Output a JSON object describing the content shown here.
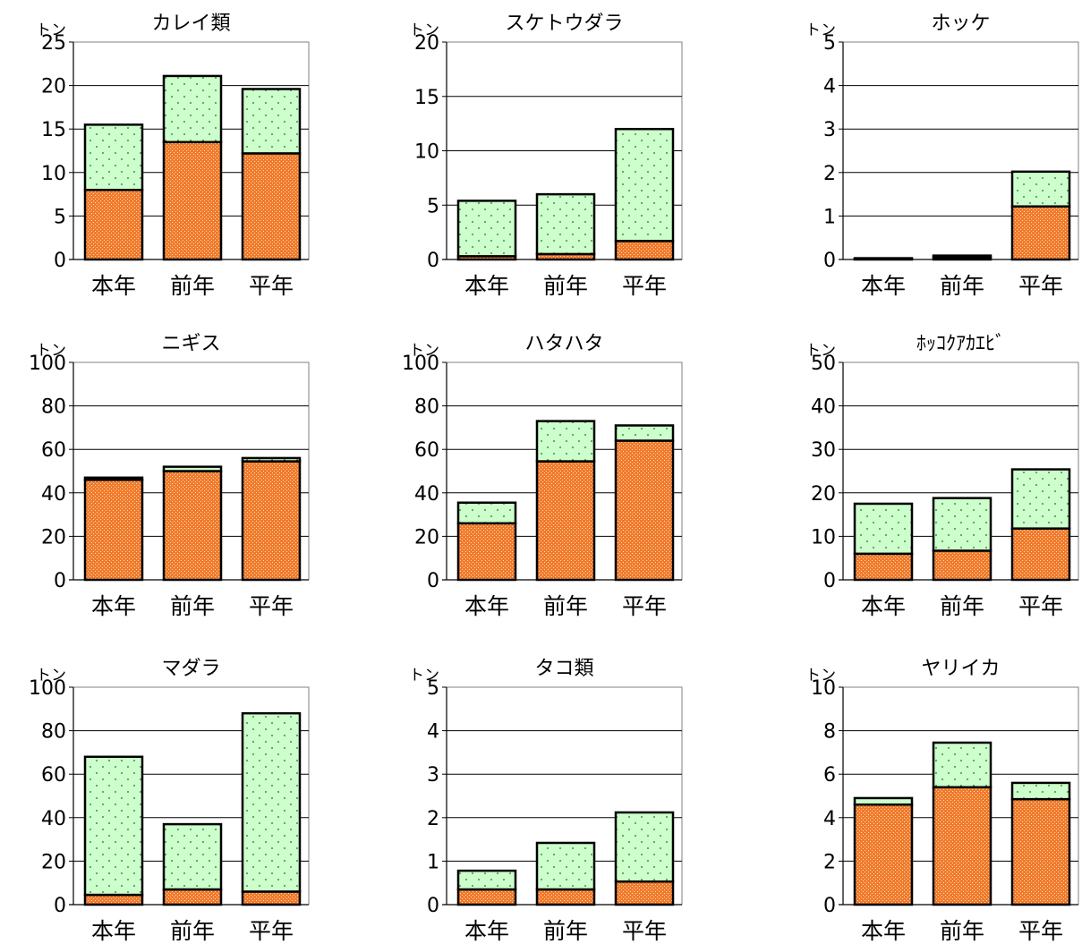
{
  "chart_data": [
    {
      "type": "bar",
      "stacked": true,
      "title": "カレイ類",
      "unit_label": "トン",
      "ylim": [
        0,
        25
      ],
      "yticks": [
        0,
        5,
        10,
        15,
        20,
        25
      ],
      "grid": true,
      "categories": [
        "本年",
        "前年",
        "平年"
      ],
      "series": [
        {
          "values": [
            8,
            13.5,
            12.2
          ],
          "color": "#f07b2c"
        },
        {
          "values": [
            7.5,
            7.6,
            7.4
          ],
          "color": "#ccffcc"
        }
      ]
    },
    {
      "type": "bar",
      "stacked": true,
      "title": "スケトウダラ",
      "unit_label": "トン",
      "ylim": [
        0,
        20
      ],
      "yticks": [
        0,
        5,
        10,
        15,
        20
      ],
      "grid": true,
      "categories": [
        "本年",
        "前年",
        "平年"
      ],
      "series": [
        {
          "values": [
            0.3,
            0.5,
            1.7
          ],
          "color": "#f07b2c"
        },
        {
          "values": [
            5.1,
            5.5,
            10.3
          ],
          "color": "#ccffcc"
        }
      ]
    },
    {
      "type": "bar",
      "stacked": true,
      "title": "ホッケ",
      "unit_label": "トン",
      "ylim": [
        0,
        5
      ],
      "yticks": [
        0,
        1,
        2,
        3,
        4,
        5
      ],
      "grid": true,
      "categories": [
        "本年",
        "前年",
        "平年"
      ],
      "series": [
        {
          "values": [
            0.02,
            0.05,
            1.22
          ],
          "color": "#f07b2c"
        },
        {
          "values": [
            0.01,
            0.04,
            0.8
          ],
          "color": "#ccffcc"
        }
      ]
    },
    {
      "type": "bar",
      "stacked": true,
      "title": "ニギス",
      "unit_label": "トン",
      "ylim": [
        0,
        100
      ],
      "yticks": [
        0,
        20,
        40,
        60,
        80,
        100
      ],
      "grid": true,
      "categories": [
        "本年",
        "前年",
        "平年"
      ],
      "series": [
        {
          "values": [
            46,
            50,
            54.5
          ],
          "color": "#f07b2c"
        },
        {
          "values": [
            1,
            2,
            1.5
          ],
          "color": "#ccffcc"
        }
      ]
    },
    {
      "type": "bar",
      "stacked": true,
      "title": "ハタハタ",
      "unit_label": "トン",
      "ylim": [
        0,
        100
      ],
      "yticks": [
        0,
        20,
        40,
        60,
        80,
        100
      ],
      "grid": true,
      "categories": [
        "本年",
        "前年",
        "平年"
      ],
      "series": [
        {
          "values": [
            26,
            54.5,
            64
          ],
          "color": "#f07b2c"
        },
        {
          "values": [
            9.5,
            18.5,
            7
          ],
          "color": "#ccffcc"
        }
      ]
    },
    {
      "type": "bar",
      "stacked": true,
      "title": "ﾎｯｺｸｱｶｴﾋﾞ",
      "unit_label": "トン",
      "ylim": [
        0,
        50
      ],
      "yticks": [
        0,
        10,
        20,
        30,
        40,
        50
      ],
      "grid": true,
      "categories": [
        "本年",
        "前年",
        "平年"
      ],
      "series": [
        {
          "values": [
            6,
            6.7,
            11.8
          ],
          "color": "#f07b2c"
        },
        {
          "values": [
            11.5,
            12.1,
            13.6
          ],
          "color": "#ccffcc"
        }
      ]
    },
    {
      "type": "bar",
      "stacked": true,
      "title": "マダラ",
      "unit_label": "トン",
      "ylim": [
        0,
        100
      ],
      "yticks": [
        0,
        20,
        40,
        60,
        80,
        100
      ],
      "grid": true,
      "categories": [
        "本年",
        "前年",
        "平年"
      ],
      "series": [
        {
          "values": [
            4.5,
            7,
            6
          ],
          "color": "#f07b2c"
        },
        {
          "values": [
            63.5,
            30,
            82
          ],
          "color": "#ccffcc"
        }
      ]
    },
    {
      "type": "bar",
      "stacked": true,
      "title": "タコ類",
      "unit_label": "トン",
      "ylim": [
        0,
        5
      ],
      "yticks": [
        0,
        1,
        2,
        3,
        4,
        5
      ],
      "grid": true,
      "categories": [
        "本年",
        "前年",
        "平年"
      ],
      "series": [
        {
          "values": [
            0.35,
            0.35,
            0.53
          ],
          "color": "#f07b2c"
        },
        {
          "values": [
            0.43,
            1.07,
            1.59
          ],
          "color": "#ccffcc"
        }
      ]
    },
    {
      "type": "bar",
      "stacked": true,
      "title": "ヤリイカ",
      "unit_label": "トン",
      "ylim": [
        0,
        10
      ],
      "yticks": [
        0,
        2,
        4,
        6,
        8,
        10
      ],
      "grid": true,
      "categories": [
        "本年",
        "前年",
        "平年"
      ],
      "series": [
        {
          "values": [
            4.6,
            5.4,
            4.85
          ],
          "color": "#f07b2c"
        },
        {
          "values": [
            0.3,
            2.05,
            0.75
          ],
          "color": "#ccffcc"
        }
      ]
    }
  ]
}
